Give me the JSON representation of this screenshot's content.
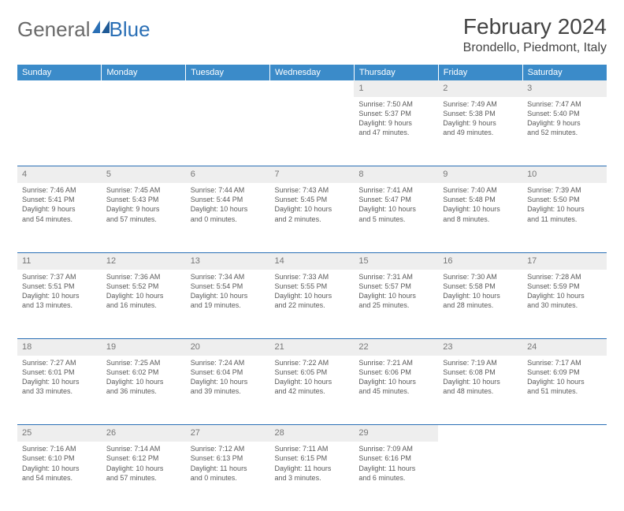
{
  "logo": {
    "text1": "General",
    "text2": "Blue"
  },
  "title": "February 2024",
  "location": "Brondello, Piedmont, Italy",
  "colors": {
    "header_bg": "#3b8bc9",
    "header_text": "#ffffff",
    "border": "#2a6fb5",
    "daynum_bg": "#eeeeee",
    "text": "#5a5a5a",
    "logo_gray": "#6a6a6a",
    "logo_blue": "#2a6fb5"
  },
  "day_headers": [
    "Sunday",
    "Monday",
    "Tuesday",
    "Wednesday",
    "Thursday",
    "Friday",
    "Saturday"
  ],
  "weeks": [
    [
      null,
      null,
      null,
      null,
      {
        "n": "1",
        "sr": "7:50 AM",
        "ss": "5:37 PM",
        "d1": "9 hours",
        "d2": "and 47 minutes."
      },
      {
        "n": "2",
        "sr": "7:49 AM",
        "ss": "5:38 PM",
        "d1": "9 hours",
        "d2": "and 49 minutes."
      },
      {
        "n": "3",
        "sr": "7:47 AM",
        "ss": "5:40 PM",
        "d1": "9 hours",
        "d2": "and 52 minutes."
      }
    ],
    [
      {
        "n": "4",
        "sr": "7:46 AM",
        "ss": "5:41 PM",
        "d1": "9 hours",
        "d2": "and 54 minutes."
      },
      {
        "n": "5",
        "sr": "7:45 AM",
        "ss": "5:43 PM",
        "d1": "9 hours",
        "d2": "and 57 minutes."
      },
      {
        "n": "6",
        "sr": "7:44 AM",
        "ss": "5:44 PM",
        "d1": "10 hours",
        "d2": "and 0 minutes."
      },
      {
        "n": "7",
        "sr": "7:43 AM",
        "ss": "5:45 PM",
        "d1": "10 hours",
        "d2": "and 2 minutes."
      },
      {
        "n": "8",
        "sr": "7:41 AM",
        "ss": "5:47 PM",
        "d1": "10 hours",
        "d2": "and 5 minutes."
      },
      {
        "n": "9",
        "sr": "7:40 AM",
        "ss": "5:48 PM",
        "d1": "10 hours",
        "d2": "and 8 minutes."
      },
      {
        "n": "10",
        "sr": "7:39 AM",
        "ss": "5:50 PM",
        "d1": "10 hours",
        "d2": "and 11 minutes."
      }
    ],
    [
      {
        "n": "11",
        "sr": "7:37 AM",
        "ss": "5:51 PM",
        "d1": "10 hours",
        "d2": "and 13 minutes."
      },
      {
        "n": "12",
        "sr": "7:36 AM",
        "ss": "5:52 PM",
        "d1": "10 hours",
        "d2": "and 16 minutes."
      },
      {
        "n": "13",
        "sr": "7:34 AM",
        "ss": "5:54 PM",
        "d1": "10 hours",
        "d2": "and 19 minutes."
      },
      {
        "n": "14",
        "sr": "7:33 AM",
        "ss": "5:55 PM",
        "d1": "10 hours",
        "d2": "and 22 minutes."
      },
      {
        "n": "15",
        "sr": "7:31 AM",
        "ss": "5:57 PM",
        "d1": "10 hours",
        "d2": "and 25 minutes."
      },
      {
        "n": "16",
        "sr": "7:30 AM",
        "ss": "5:58 PM",
        "d1": "10 hours",
        "d2": "and 28 minutes."
      },
      {
        "n": "17",
        "sr": "7:28 AM",
        "ss": "5:59 PM",
        "d1": "10 hours",
        "d2": "and 30 minutes."
      }
    ],
    [
      {
        "n": "18",
        "sr": "7:27 AM",
        "ss": "6:01 PM",
        "d1": "10 hours",
        "d2": "and 33 minutes."
      },
      {
        "n": "19",
        "sr": "7:25 AM",
        "ss": "6:02 PM",
        "d1": "10 hours",
        "d2": "and 36 minutes."
      },
      {
        "n": "20",
        "sr": "7:24 AM",
        "ss": "6:04 PM",
        "d1": "10 hours",
        "d2": "and 39 minutes."
      },
      {
        "n": "21",
        "sr": "7:22 AM",
        "ss": "6:05 PM",
        "d1": "10 hours",
        "d2": "and 42 minutes."
      },
      {
        "n": "22",
        "sr": "7:21 AM",
        "ss": "6:06 PM",
        "d1": "10 hours",
        "d2": "and 45 minutes."
      },
      {
        "n": "23",
        "sr": "7:19 AM",
        "ss": "6:08 PM",
        "d1": "10 hours",
        "d2": "and 48 minutes."
      },
      {
        "n": "24",
        "sr": "7:17 AM",
        "ss": "6:09 PM",
        "d1": "10 hours",
        "d2": "and 51 minutes."
      }
    ],
    [
      {
        "n": "25",
        "sr": "7:16 AM",
        "ss": "6:10 PM",
        "d1": "10 hours",
        "d2": "and 54 minutes."
      },
      {
        "n": "26",
        "sr": "7:14 AM",
        "ss": "6:12 PM",
        "d1": "10 hours",
        "d2": "and 57 minutes."
      },
      {
        "n": "27",
        "sr": "7:12 AM",
        "ss": "6:13 PM",
        "d1": "11 hours",
        "d2": "and 0 minutes."
      },
      {
        "n": "28",
        "sr": "7:11 AM",
        "ss": "6:15 PM",
        "d1": "11 hours",
        "d2": "and 3 minutes."
      },
      {
        "n": "29",
        "sr": "7:09 AM",
        "ss": "6:16 PM",
        "d1": "11 hours",
        "d2": "and 6 minutes."
      },
      null,
      null
    ]
  ],
  "labels": {
    "sunrise": "Sunrise: ",
    "sunset": "Sunset: ",
    "daylight": "Daylight: "
  }
}
